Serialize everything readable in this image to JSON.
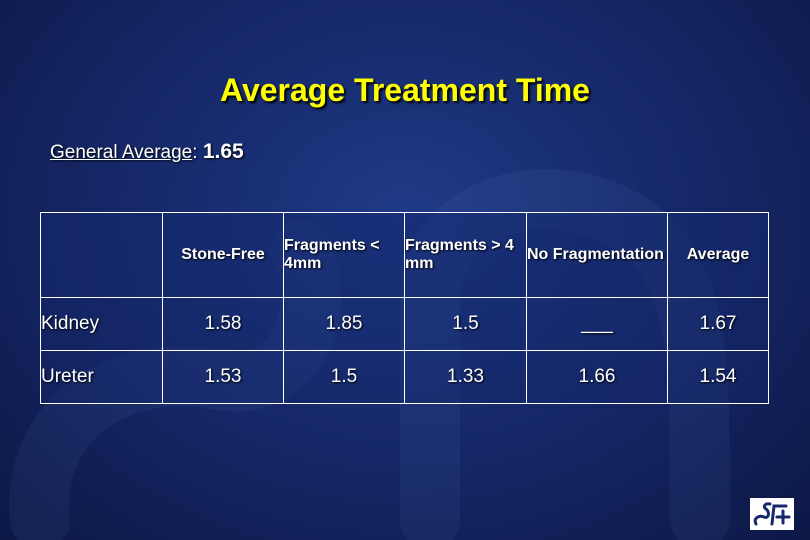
{
  "title": "Average Treatment Time",
  "general": {
    "label": "General Average",
    "sep": ":",
    "value": "1.65"
  },
  "table": {
    "headers": [
      "",
      "Stone-Free",
      "Fragments < 4mm",
      "Fragments > 4 mm",
      "No Fragmentation",
      "Average"
    ],
    "rows": [
      {
        "label": "Kidney",
        "cells": [
          "1.58",
          "1.85",
          "1.5",
          "___",
          "1.67"
        ]
      },
      {
        "label": "Ureter",
        "cells": [
          "1.53",
          "1.5",
          "1.33",
          "1.66",
          "1.54"
        ]
      }
    ]
  },
  "colors": {
    "title": "#ffff00",
    "text": "#ffffff",
    "background": "#16296b"
  }
}
